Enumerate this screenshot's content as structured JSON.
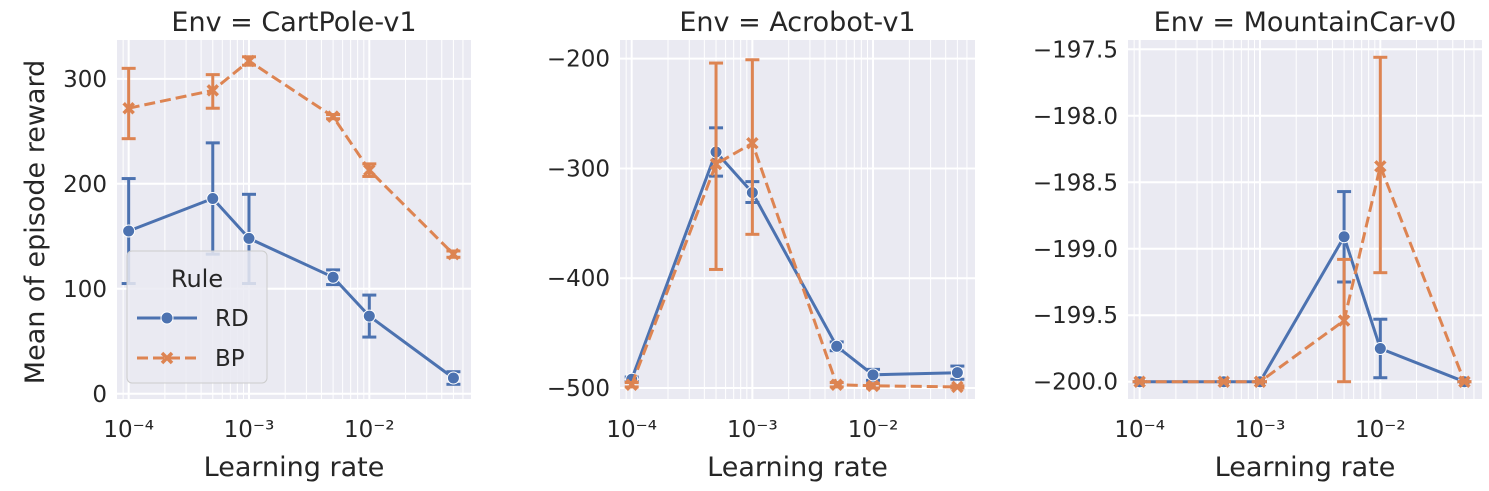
{
  "chart_data": [
    {
      "type": "line",
      "title": "Env = CartPole-v1",
      "xlabel": "Learning rate",
      "ylabel": "Mean of episode reward",
      "xscale": "log",
      "xlim": [
        8e-05,
        0.07
      ],
      "ylim": [
        -5,
        337
      ],
      "yticks": [
        0,
        100,
        200,
        300
      ],
      "ytick_labels": [
        "0",
        "100",
        "200",
        "300"
      ],
      "xticks": [
        0.0001,
        0.001,
        0.01
      ],
      "grid": true,
      "x": [
        0.0001,
        0.0005,
        0.001,
        0.005,
        0.01,
        0.05
      ],
      "series": [
        {
          "name": "RD",
          "values": [
            155,
            186,
            148,
            111,
            74,
            15
          ],
          "err_low": [
            105,
            133,
            105,
            104,
            54,
            9
          ],
          "err_high": [
            205,
            239,
            190,
            118,
            94,
            21
          ]
        },
        {
          "name": "BP",
          "values": [
            272,
            289,
            317,
            264,
            213,
            133
          ],
          "err_low": [
            243,
            272,
            313,
            262,
            207,
            130
          ],
          "err_high": [
            310,
            304,
            321,
            266,
            219,
            136
          ]
        }
      ]
    },
    {
      "type": "line",
      "title": "Env = Acrobot-v1",
      "xlabel": "Learning rate",
      "ylabel": "",
      "xscale": "log",
      "xlim": [
        8e-05,
        0.07
      ],
      "ylim": [
        -510,
        -183
      ],
      "yticks": [
        -500,
        -400,
        -300,
        -200
      ],
      "ytick_labels": [
        "−500",
        "−400",
        "−300",
        "−200"
      ],
      "xticks": [
        0.0001,
        0.001,
        0.01
      ],
      "grid": true,
      "x": [
        0.0001,
        0.0005,
        0.001,
        0.005,
        0.01,
        0.05
      ],
      "series": [
        {
          "name": "RD",
          "values": [
            -492,
            -285,
            -322,
            -462,
            -488,
            -486
          ],
          "err_low": [
            -494,
            -307,
            -331,
            -466,
            -493,
            -492
          ],
          "err_high": [
            -490,
            -263,
            -312,
            -458,
            -483,
            -480
          ]
        },
        {
          "name": "BP",
          "values": [
            -497,
            -296,
            -277,
            -497,
            -498,
            -499
          ],
          "err_low": [
            -499,
            -392,
            -360,
            -499,
            -500,
            -500
          ],
          "err_high": [
            -495,
            -204,
            -201,
            -495,
            -496,
            -498
          ]
        }
      ]
    },
    {
      "type": "line",
      "title": "Env = MountainCar-v0",
      "xlabel": "Learning rate",
      "ylabel": "",
      "xscale": "log",
      "xlim": [
        8e-05,
        0.07
      ],
      "ylim": [
        -200.13,
        -197.43
      ],
      "yticks": [
        -200.0,
        -199.5,
        -199.0,
        -198.5,
        -198.0,
        -197.5
      ],
      "ytick_labels": [
        "−200.0",
        "−199.5",
        "−199.0",
        "−198.5",
        "−198.0",
        "−197.5"
      ],
      "xticks": [
        0.0001,
        0.001,
        0.01
      ],
      "grid": true,
      "x": [
        0.0001,
        0.0005,
        0.001,
        0.005,
        0.01,
        0.05
      ],
      "series": [
        {
          "name": "RD",
          "values": [
            -200.0,
            -200.0,
            -200.0,
            -198.91,
            -199.75,
            -200.0
          ],
          "err_low": [
            -200.0,
            -200.0,
            -200.0,
            -199.25,
            -199.97,
            -200.0
          ],
          "err_high": [
            -200.0,
            -200.0,
            -200.0,
            -198.57,
            -199.53,
            -200.0
          ]
        },
        {
          "name": "BP",
          "values": [
            -200.0,
            -200.0,
            -200.0,
            -199.54,
            -198.38,
            -200.0
          ],
          "err_low": [
            -200.0,
            -200.0,
            -200.0,
            -200.0,
            -199.18,
            -200.0
          ],
          "err_high": [
            -200.0,
            -200.0,
            -200.0,
            -199.08,
            -197.56,
            -200.0
          ]
        }
      ]
    }
  ],
  "legend": {
    "title": "Rule",
    "entries": [
      {
        "label": "RD",
        "color": "#4c72b0",
        "marker": "circle",
        "dash": "solid"
      },
      {
        "label": "BP",
        "color": "#dd8452",
        "marker": "x",
        "dash": "dashed"
      }
    ]
  },
  "style": {
    "panel_bg": "#eaeaf2",
    "grid_color": "#ffffff",
    "rd_color": "#4c72b0",
    "bp_color": "#dd8452"
  }
}
